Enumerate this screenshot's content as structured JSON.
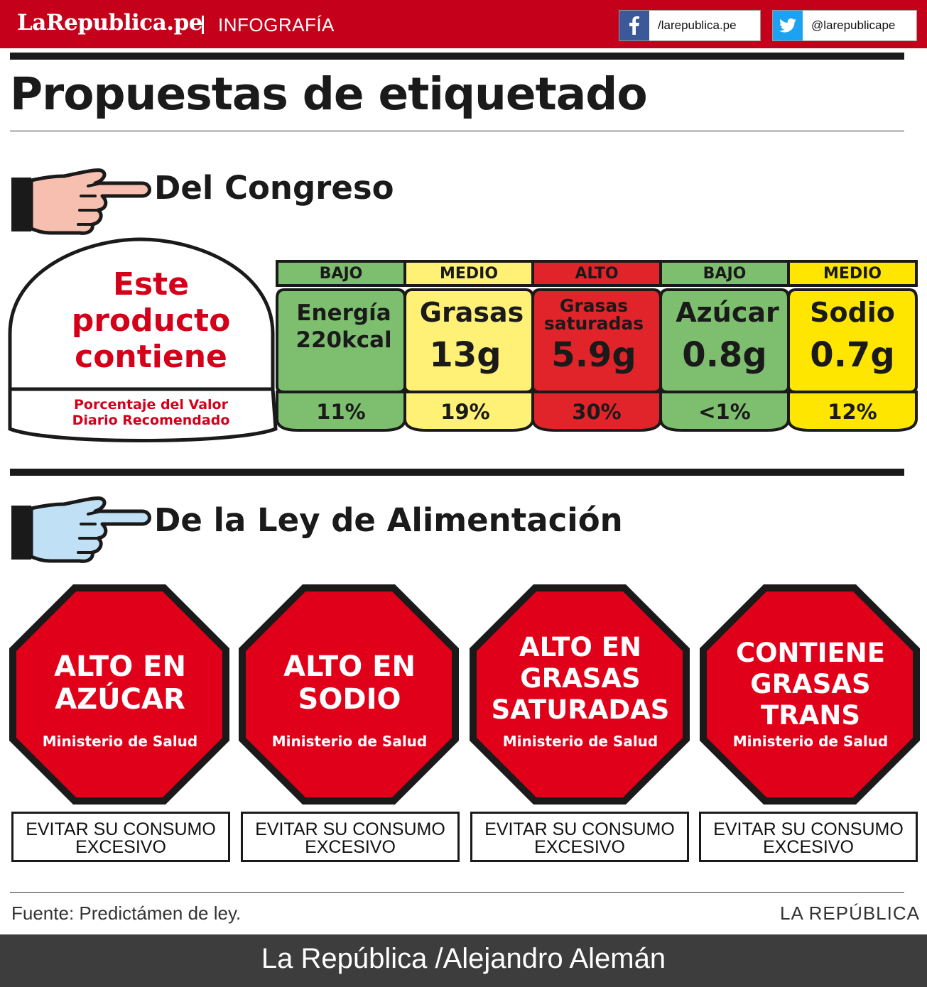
{
  "header": {
    "logo": "LaRepublica.pe",
    "section": "INFOGRAFÍA",
    "facebook": "/larepublica.pe",
    "twitter": "@larepublicape"
  },
  "title": "Propuestas de etiquetado",
  "congreso": {
    "heading": "Del Congreso",
    "intro": "Este producto contiene",
    "intro_lines": [
      "Este",
      "producto",
      "contiene"
    ],
    "pct_label_lines": [
      "Porcentaje del Valor",
      "Diario Recomendado"
    ],
    "nutrients": [
      {
        "level": "BAJO",
        "name_lines": [
          "Energía",
          "220kcal"
        ],
        "value": "",
        "pct": "11%",
        "color": "#7dbf6f"
      },
      {
        "level": "MEDIO",
        "name_lines": [
          "Grasas"
        ],
        "value": "13g",
        "pct": "19%",
        "color": "#fff176"
      },
      {
        "level": "ALTO",
        "name_lines": [
          "Grasas",
          "saturadas"
        ],
        "value": "5.9g",
        "pct": "30%",
        "color": "#e0242a"
      },
      {
        "level": "BAJO",
        "name_lines": [
          "Azúcar"
        ],
        "value": "0.8g",
        "pct": "<1%",
        "color": "#7dbf6f"
      },
      {
        "level": "MEDIO",
        "name_lines": [
          "Sodio"
        ],
        "value": "0.7g",
        "pct": "12%",
        "color": "#ffe600"
      }
    ]
  },
  "ley": {
    "heading": "De la Ley de Alimentación",
    "seals": [
      {
        "lines": [
          "ALTO EN",
          "AZÚCAR"
        ],
        "ministry": "Ministerio de Salud",
        "warning_lines": [
          "EVITAR SU CONSUMO",
          "EXCESIVO"
        ]
      },
      {
        "lines": [
          "ALTO EN",
          "SODIO"
        ],
        "ministry": "Ministerio de Salud",
        "warning_lines": [
          "EVITAR SU CONSUMO",
          "EXCESIVO"
        ]
      },
      {
        "lines": [
          "ALTO EN",
          "GRASAS",
          "SATURADAS"
        ],
        "ministry": "Ministerio de Salud",
        "warning_lines": [
          "EVITAR SU CONSUMO",
          "EXCESIVO"
        ]
      },
      {
        "lines": [
          "CONTIENE",
          "GRASAS",
          "TRANS"
        ],
        "ministry": "Ministerio de Salud",
        "warning_lines": [
          "EVITAR SU CONSUMO",
          "EXCESIVO"
        ]
      }
    ]
  },
  "source": "Fuente: Predictámen de ley.",
  "brand": "LA REPÚBLICA",
  "credit": "La República /Alejandro Alemán",
  "colors": {
    "brand_red": "#c4001a",
    "seal_red": "#e0001a",
    "hand_congreso": "#f7bfb0",
    "hand_ley": "#bfe0f5"
  }
}
